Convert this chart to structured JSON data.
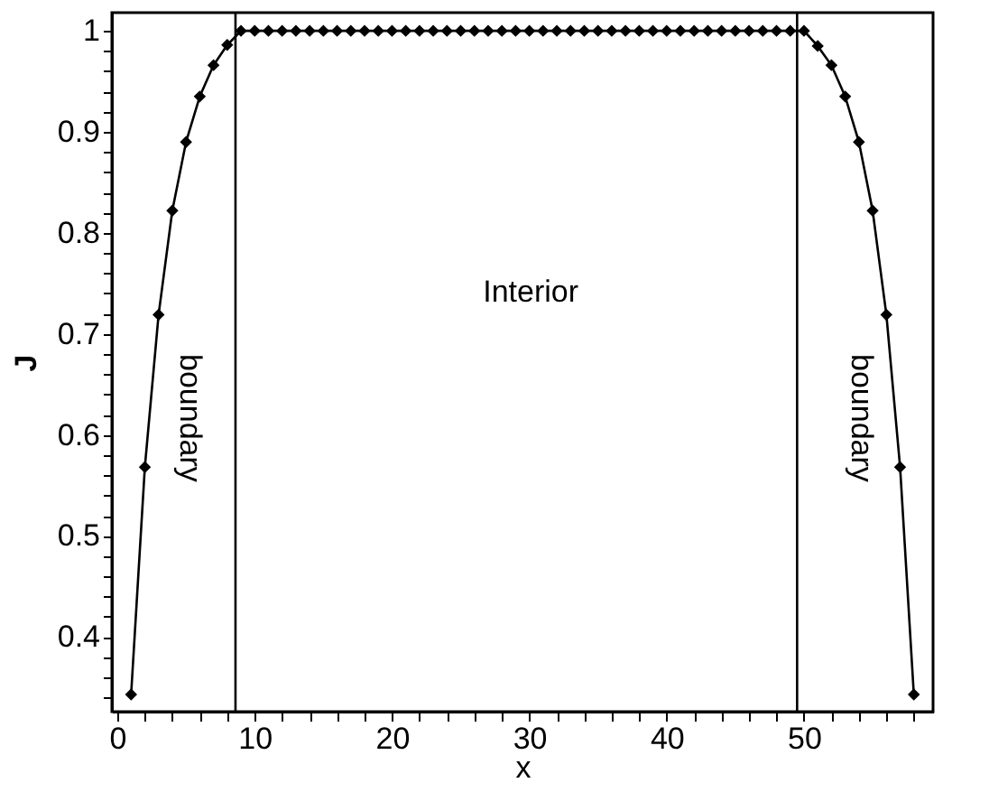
{
  "chart_data": {
    "type": "line",
    "xlabel": "x",
    "ylabel": "J",
    "x": [
      1,
      2,
      3,
      4,
      5,
      6,
      7,
      8,
      9,
      10,
      11,
      12,
      13,
      14,
      15,
      16,
      17,
      18,
      19,
      20,
      21,
      22,
      23,
      24,
      25,
      26,
      27,
      28,
      29,
      30,
      31,
      32,
      33,
      34,
      35,
      36,
      37,
      38,
      39,
      40,
      41,
      42,
      43,
      44,
      45,
      46,
      47,
      48,
      49,
      50,
      51,
      52,
      53,
      54,
      55,
      56,
      57,
      58
    ],
    "series": [
      {
        "color": "#000000",
        "values": [
          0.343,
          0.568,
          0.719,
          0.822,
          0.89,
          0.935,
          0.966,
          0.986,
          1,
          1,
          1,
          1,
          1,
          1,
          1,
          1,
          1,
          1,
          1,
          1,
          1,
          1,
          1,
          1,
          1,
          1,
          1,
          1,
          1,
          1,
          1,
          1,
          1,
          1,
          1,
          1,
          1,
          1,
          1,
          1,
          1,
          1,
          1,
          1,
          1,
          1,
          1,
          1,
          1,
          1,
          0.985,
          0.966,
          0.935,
          0.89,
          0.822,
          0.719,
          0.568,
          0.343
        ]
      }
    ],
    "xlim": [
      -0.4,
      59.4
    ],
    "ylim": [
      0.326,
      1.018
    ],
    "xticks": [
      0,
      {
        "value": 2,
        "label": null
      },
      {
        "value": 4,
        "label": null
      },
      {
        "value": 6,
        "label": null
      },
      {
        "value": 8,
        "label": null
      },
      10,
      {
        "value": 12,
        "label": null
      },
      {
        "value": 14,
        "label": null
      },
      {
        "value": 16,
        "label": null
      },
      {
        "value": 18,
        "label": null
      },
      20,
      {
        "value": 22,
        "label": null
      },
      {
        "value": 24,
        "label": null
      },
      {
        "value": 26,
        "label": null
      },
      {
        "value": 28,
        "label": null
      },
      30,
      {
        "value": 32,
        "label": null
      },
      {
        "value": 34,
        "label": null
      },
      {
        "value": 36,
        "label": null
      },
      {
        "value": 38,
        "label": null
      },
      40,
      {
        "value": 42,
        "label": null
      },
      {
        "value": 44,
        "label": null
      },
      {
        "value": 46,
        "label": null
      },
      {
        "value": 48,
        "label": null
      },
      50,
      {
        "value": 52,
        "label": null
      },
      {
        "value": 54,
        "label": null
      },
      {
        "value": 56,
        "label": null
      },
      {
        "value": 58,
        "label": null
      }
    ],
    "yticks": [
      {
        "value": 0.34,
        "label": null
      },
      {
        "value": 0.36,
        "label": null
      },
      {
        "value": 0.38,
        "label": null
      },
      0.4,
      {
        "value": 0.42,
        "label": null
      },
      {
        "value": 0.44,
        "label": null
      },
      {
        "value": 0.46,
        "label": null
      },
      {
        "value": 0.48,
        "label": null
      },
      0.5,
      {
        "value": 0.52,
        "label": null
      },
      {
        "value": 0.54,
        "label": null
      },
      {
        "value": 0.56,
        "label": null
      },
      {
        "value": 0.58,
        "label": null
      },
      0.6,
      {
        "value": 0.62,
        "label": null
      },
      {
        "value": 0.64,
        "label": null
      },
      {
        "value": 0.66,
        "label": null
      },
      {
        "value": 0.68,
        "label": null
      },
      0.7,
      {
        "value": 0.72,
        "label": null
      },
      {
        "value": 0.74,
        "label": null
      },
      {
        "value": 0.76,
        "label": null
      },
      {
        "value": 0.78,
        "label": null
      },
      0.8,
      {
        "value": 0.82,
        "label": null
      },
      {
        "value": 0.84,
        "label": null
      },
      {
        "value": 0.86,
        "label": null
      },
      {
        "value": 0.88,
        "label": null
      },
      0.9,
      {
        "value": 0.92,
        "label": null
      },
      {
        "value": 0.94,
        "label": null
      },
      {
        "value": 0.96,
        "label": null
      },
      {
        "value": 0.98,
        "label": null
      },
      {
        "value": 1,
        "label": "1"
      }
    ],
    "ref_lines": [
      {
        "axis": "x",
        "value": 8.6,
        "color": "#000000"
      },
      {
        "axis": "x",
        "value": 49.5,
        "color": "#000000"
      }
    ],
    "annotations": [
      "Interior",
      "boundary",
      "boundary"
    ],
    "marker": "diamond",
    "line_style": "solid",
    "grid": false
  }
}
